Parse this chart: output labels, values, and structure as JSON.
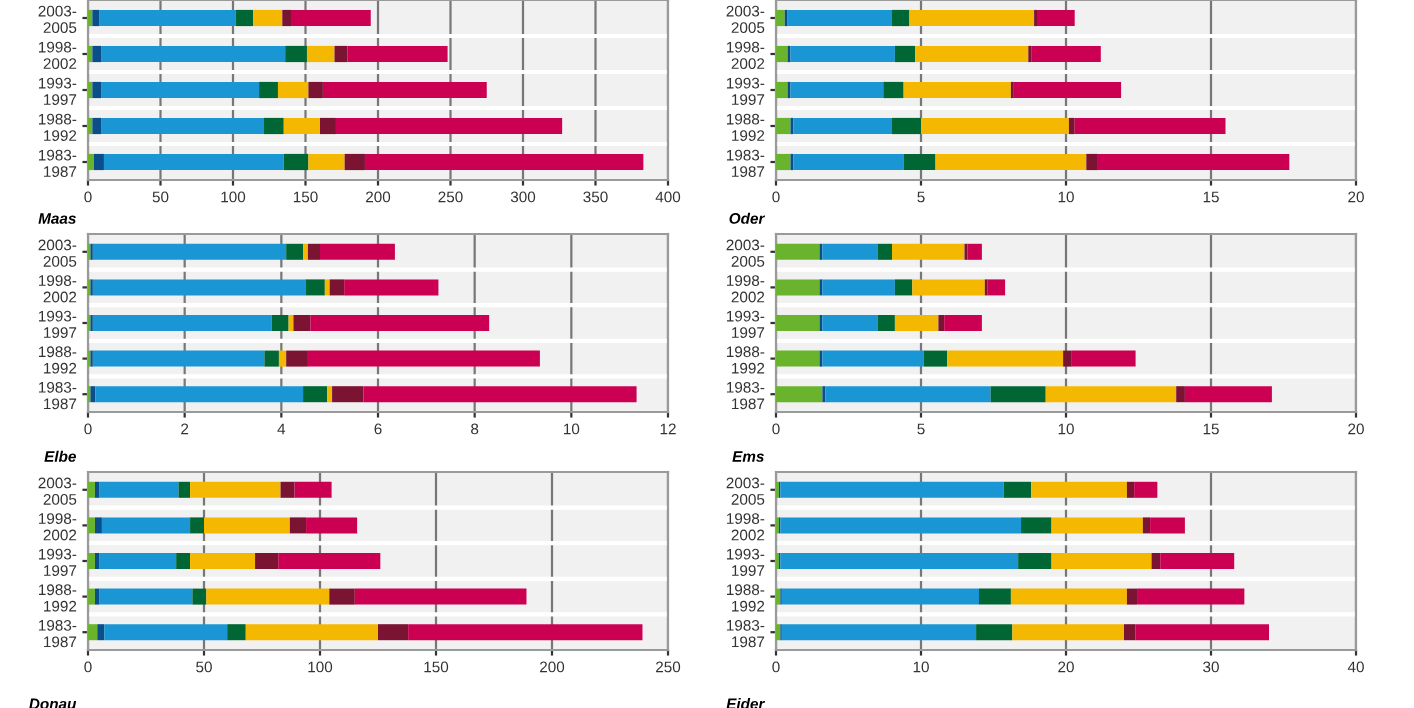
{
  "chart_data": [
    {
      "type": "bar",
      "orientation": "horizontal",
      "stacked": true,
      "grid": "x",
      "categories": [
        "2003-\n2005",
        "1998-\n2002",
        "1993-\n1997",
        "1988-\n1992",
        "1983-\n1987"
      ],
      "xlim": [
        0,
        400
      ],
      "xticks": [
        0,
        50,
        100,
        150,
        200,
        250,
        300,
        350,
        400
      ],
      "series": [
        {
          "color": "#6ab42d",
          "values": [
            3,
            3,
            3,
            3,
            4
          ]
        },
        {
          "color": "#0b4f8a",
          "values": [
            5,
            6,
            6,
            6,
            7
          ]
        },
        {
          "color": "#1a96d4",
          "values": [
            94,
            127,
            109,
            112,
            124
          ]
        },
        {
          "color": "#006633",
          "values": [
            12,
            15,
            13,
            14,
            17
          ]
        },
        {
          "color": "#f5b800",
          "values": [
            20,
            19,
            21,
            25,
            25
          ]
        },
        {
          "color": "#7a1432",
          "values": [
            6,
            9,
            10,
            11,
            14
          ]
        },
        {
          "color": "#cc0052",
          "values": [
            55,
            69,
            113,
            156,
            192
          ]
        }
      ]
    },
    {
      "type": "bar",
      "orientation": "horizontal",
      "stacked": true,
      "grid": "x",
      "categories": [
        "2003-\n2005",
        "1998-\n2002",
        "1993-\n1997",
        "1988-\n1992",
        "1983-\n1987"
      ],
      "xlim": [
        0,
        20
      ],
      "xticks": [
        0,
        5,
        10,
        15,
        20
      ],
      "series": [
        {
          "color": "#6ab42d",
          "values": [
            0.3,
            0.4,
            0.4,
            0.5,
            0.5
          ]
        },
        {
          "color": "#0b4f8a",
          "values": [
            0.1,
            0.1,
            0.1,
            0.1,
            0.1
          ]
        },
        {
          "color": "#1a96d4",
          "values": [
            3.6,
            3.6,
            3.2,
            3.4,
            3.8
          ]
        },
        {
          "color": "#006633",
          "values": [
            0.6,
            0.7,
            0.7,
            1.0,
            1.1
          ]
        },
        {
          "color": "#f5b800",
          "values": [
            4.3,
            3.9,
            3.7,
            5.1,
            5.2
          ]
        },
        {
          "color": "#7a1432",
          "values": [
            0.1,
            0.1,
            0.1,
            0.2,
            0.4
          ]
        },
        {
          "color": "#cc0052",
          "values": [
            1.3,
            2.4,
            3.7,
            5.2,
            6.6
          ]
        }
      ]
    },
    {
      "type": "bar",
      "orientation": "horizontal",
      "stacked": true,
      "grid": "x",
      "title": "Maas",
      "categories": [
        "2003-\n2005",
        "1998-\n2002",
        "1993-\n1997",
        "1988-\n1992",
        "1983-\n1987"
      ],
      "xlim": [
        0,
        12
      ],
      "xticks": [
        0,
        2,
        4,
        6,
        8,
        10,
        12
      ],
      "series": [
        {
          "color": "#6ab42d",
          "values": [
            0.05,
            0.05,
            0.05,
            0.05,
            0.05
          ]
        },
        {
          "color": "#0b4f8a",
          "values": [
            0.05,
            0.05,
            0.05,
            0.05,
            0.1
          ]
        },
        {
          "color": "#1a96d4",
          "values": [
            4.0,
            4.4,
            3.7,
            3.55,
            4.3
          ]
        },
        {
          "color": "#006633",
          "values": [
            0.35,
            0.4,
            0.35,
            0.3,
            0.5
          ]
        },
        {
          "color": "#f5b800",
          "values": [
            0.1,
            0.1,
            0.1,
            0.15,
            0.1
          ]
        },
        {
          "color": "#7a1432",
          "values": [
            0.25,
            0.3,
            0.35,
            0.45,
            0.65
          ]
        },
        {
          "color": "#cc0052",
          "values": [
            1.55,
            1.95,
            3.7,
            4.8,
            5.65
          ]
        }
      ]
    },
    {
      "type": "bar",
      "orientation": "horizontal",
      "stacked": true,
      "grid": "x",
      "title": "Oder",
      "categories": [
        "2003-\n2005",
        "1998-\n2002",
        "1993-\n1997",
        "1988-\n1992",
        "1983-\n1987"
      ],
      "xlim": [
        0,
        20
      ],
      "xticks": [
        0,
        5,
        10,
        15,
        20
      ],
      "series": [
        {
          "color": "#6ab42d",
          "values": [
            1.5,
            1.5,
            1.5,
            1.5,
            1.6
          ]
        },
        {
          "color": "#0b4f8a",
          "values": [
            0.1,
            0.1,
            0.1,
            0.1,
            0.1
          ]
        },
        {
          "color": "#1a96d4",
          "values": [
            1.9,
            2.5,
            1.9,
            3.5,
            5.7
          ]
        },
        {
          "color": "#006633",
          "values": [
            0.5,
            0.6,
            0.6,
            0.8,
            1.9
          ]
        },
        {
          "color": "#f5b800",
          "values": [
            2.5,
            2.5,
            1.5,
            4.0,
            4.5
          ]
        },
        {
          "color": "#7a1432",
          "values": [
            0.1,
            0.1,
            0.2,
            0.3,
            0.3
          ]
        },
        {
          "color": "#cc0052",
          "values": [
            0.5,
            0.6,
            1.3,
            2.2,
            3.0
          ]
        }
      ]
    },
    {
      "type": "bar",
      "orientation": "horizontal",
      "stacked": true,
      "grid": "x",
      "title": "Elbe",
      "annotations": [
        "Donau"
      ],
      "categories": [
        "2003-\n2005",
        "1998-\n2002",
        "1993-\n1997",
        "1988-\n1992",
        "1983-\n1987"
      ],
      "xlim": [
        0,
        250
      ],
      "xticks": [
        0,
        50,
        100,
        150,
        200,
        250
      ],
      "series": [
        {
          "color": "#6ab42d",
          "values": [
            3,
            3,
            3,
            3,
            4
          ]
        },
        {
          "color": "#0b4f8a",
          "values": [
            2,
            3,
            2,
            2,
            3
          ]
        },
        {
          "color": "#1a96d4",
          "values": [
            34,
            38,
            33,
            40,
            53
          ]
        },
        {
          "color": "#006633",
          "values": [
            5,
            6,
            6,
            6,
            8
          ]
        },
        {
          "color": "#f5b800",
          "values": [
            39,
            37,
            28,
            53,
            57
          ]
        },
        {
          "color": "#7a1432",
          "values": [
            6,
            7,
            10,
            11,
            13
          ]
        },
        {
          "color": "#cc0052",
          "values": [
            16,
            22,
            44,
            74,
            101
          ]
        }
      ]
    },
    {
      "type": "bar",
      "orientation": "horizontal",
      "stacked": true,
      "grid": "x",
      "title": "Ems",
      "annotations": [
        "Eider"
      ],
      "categories": [
        "2003-\n2005",
        "1998-\n2002",
        "1993-\n1997",
        "1988-\n1992",
        "1983-\n1987"
      ],
      "xlim": [
        0,
        40
      ],
      "xticks": [
        0,
        10,
        20,
        30,
        40
      ],
      "series": [
        {
          "color": "#6ab42d",
          "values": [
            0.2,
            0.2,
            0.2,
            0.3,
            0.3
          ]
        },
        {
          "color": "#0b4f8a",
          "values": [
            0.1,
            0.1,
            0.1,
            0.1,
            0.1
          ]
        },
        {
          "color": "#1a96d4",
          "values": [
            15.4,
            16.6,
            16.4,
            13.6,
            13.4
          ]
        },
        {
          "color": "#006633",
          "values": [
            1.9,
            2.1,
            2.3,
            2.2,
            2.5
          ]
        },
        {
          "color": "#f5b800",
          "values": [
            6.6,
            6.3,
            6.9,
            8.0,
            7.7
          ]
        },
        {
          "color": "#7a1432",
          "values": [
            0.5,
            0.5,
            0.6,
            0.7,
            0.8
          ]
        },
        {
          "color": "#cc0052",
          "values": [
            1.6,
            2.4,
            5.1,
            7.4,
            9.2
          ]
        }
      ]
    }
  ]
}
